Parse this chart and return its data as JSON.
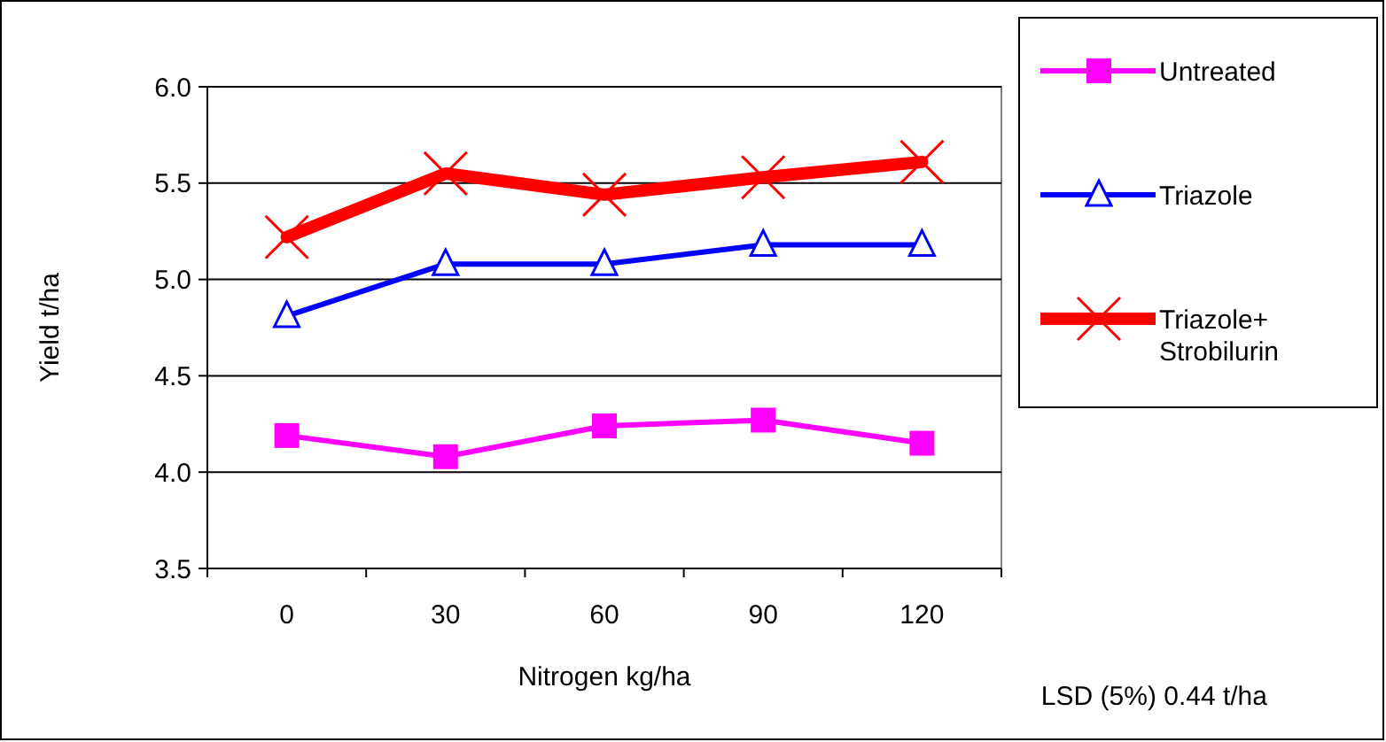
{
  "chart_data": {
    "type": "line",
    "xlabel": "Nitrogen kg/ha",
    "ylabel": "Yield t/ha",
    "categories": [
      "0",
      "30",
      "60",
      "90",
      "120"
    ],
    "series": [
      {
        "name": "Untreated",
        "color": "#ff00ff",
        "marker": "square",
        "values": [
          4.19,
          4.08,
          4.24,
          4.27,
          4.15
        ]
      },
      {
        "name": "Triazole",
        "color": "#0000ff",
        "marker": "triangle",
        "values": [
          4.81,
          5.08,
          5.08,
          5.18,
          5.18
        ]
      },
      {
        "name": "Triazole+ Strobilurin",
        "color": "#ff0000",
        "marker": "cross",
        "values": [
          5.22,
          5.55,
          5.44,
          5.53,
          5.61
        ]
      }
    ],
    "ylim": [
      3.5,
      6.0
    ],
    "yticks": [
      {
        "value": 3.5,
        "label": "3.5"
      },
      {
        "value": 4,
        "label": "4.0"
      },
      {
        "value": 4.5,
        "label": "4.5"
      },
      {
        "value": 5,
        "label": "5.0"
      },
      {
        "value": 5.5,
        "label": "5.5"
      },
      {
        "value": 6,
        "label": "6.0"
      }
    ],
    "grid": "y",
    "legend": "right",
    "line_style": "solid",
    "annotations": [
      "LSD (5%) 0.44 t/ha"
    ]
  }
}
